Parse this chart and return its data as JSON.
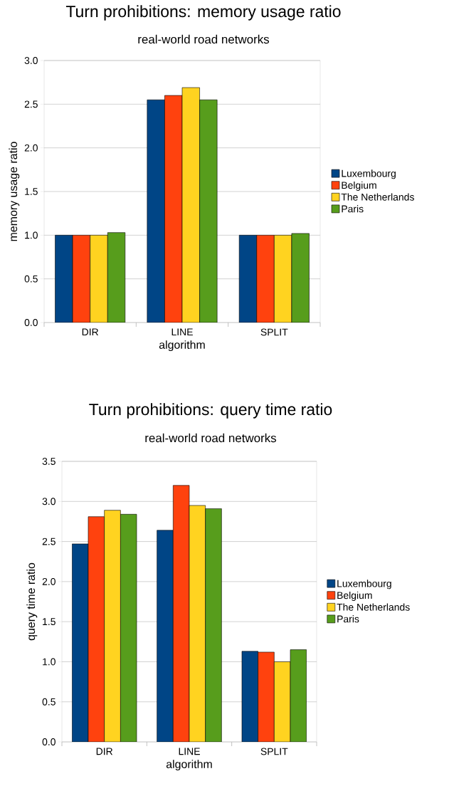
{
  "chart_data": [
    {
      "type": "bar",
      "title": "Turn prohibitions: memory usage ratio",
      "subtitle": "real-world road networks",
      "xlabel": "algorithm",
      "ylabel": "memory usage ratio",
      "categories": [
        "DIR",
        "LINE",
        "SPLIT"
      ],
      "series": [
        {
          "name": "Luxembourg",
          "color": "#004586",
          "values": [
            1.0,
            2.55,
            1.0
          ]
        },
        {
          "name": "Belgium",
          "color": "#ff420e",
          "values": [
            1.0,
            2.6,
            1.0
          ]
        },
        {
          "name": "The Netherlands",
          "color": "#ffd320",
          "values": [
            1.0,
            2.69,
            1.0
          ]
        },
        {
          "name": "Paris",
          "color": "#579d1c",
          "values": [
            1.03,
            2.55,
            1.02
          ]
        }
      ],
      "ylim": [
        0,
        3
      ],
      "yticks": [
        {
          "value": 0,
          "label": "0.0"
        },
        {
          "value": 0.5,
          "label": "0.5"
        },
        {
          "value": 1,
          "label": "1.0"
        },
        {
          "value": 1.5,
          "label": "1.5"
        },
        {
          "value": 2,
          "label": "2.0"
        },
        {
          "value": 2.5,
          "label": "2.5"
        },
        {
          "value": 3,
          "label": "3.0"
        }
      ],
      "grid": "y",
      "legend": "right"
    },
    {
      "type": "bar",
      "title": "Turn prohibitions: query time ratio",
      "subtitle": "real-world road networks",
      "xlabel": "algorithm",
      "ylabel": "query time ratio",
      "categories": [
        "DIR",
        "LINE",
        "SPLIT"
      ],
      "series": [
        {
          "name": "Luxembourg",
          "color": "#004586",
          "values": [
            2.47,
            2.64,
            1.13
          ]
        },
        {
          "name": "Belgium",
          "color": "#ff420e",
          "values": [
            2.81,
            3.2,
            1.12
          ]
        },
        {
          "name": "The Netherlands",
          "color": "#ffd320",
          "values": [
            2.89,
            2.95,
            1.0
          ]
        },
        {
          "name": "Paris",
          "color": "#579d1c",
          "values": [
            2.84,
            2.91,
            1.15
          ]
        }
      ],
      "ylim": [
        0,
        3.5
      ],
      "yticks": [
        {
          "value": 0,
          "label": "0.0"
        },
        {
          "value": 0.5,
          "label": "0.5"
        },
        {
          "value": 1,
          "label": "1.0"
        },
        {
          "value": 1.5,
          "label": "1.5"
        },
        {
          "value": 2,
          "label": "2.0"
        },
        {
          "value": 2.5,
          "label": "2.5"
        },
        {
          "value": 3,
          "label": "3.0"
        },
        {
          "value": 3.5,
          "label": "3.5"
        }
      ],
      "grid": "y",
      "legend": "right"
    }
  ]
}
